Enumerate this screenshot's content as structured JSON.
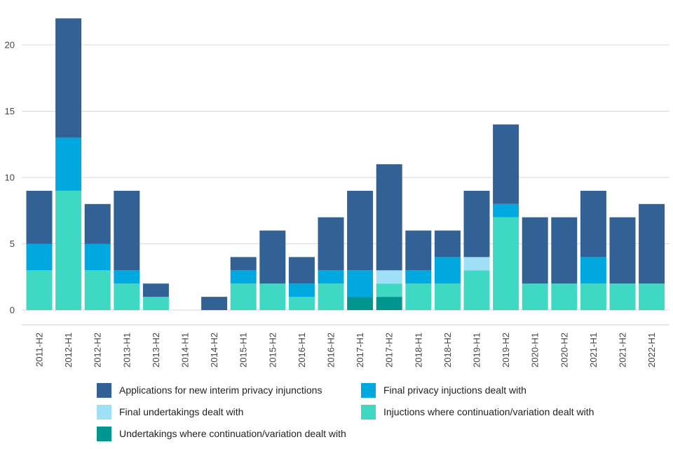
{
  "chart_data": {
    "type": "bar",
    "stacked": true,
    "title": "",
    "xlabel": "",
    "ylabel": "",
    "ylim": [
      0,
      22
    ],
    "yticks": [
      0,
      5,
      10,
      15,
      20
    ],
    "grid": true,
    "legend_position": "bottom",
    "categories": [
      "2011-H2",
      "2012-H1",
      "2012-H2",
      "2013-H1",
      "2013-H2",
      "2014-H1",
      "2014-H2",
      "2015-H1",
      "2015-H2",
      "2016-H1",
      "2016-H2",
      "2017-H1",
      "2017-H2",
      "2018-H1",
      "2018-H2",
      "2019-H1",
      "2019-H2",
      "2020-H1",
      "2020-H2",
      "2021-H1",
      "2021-H2",
      "2022-H1"
    ],
    "series": [
      {
        "name": "Undertakings where continuation/variation dealt with",
        "color": "#00968f",
        "values": [
          0,
          0,
          0,
          0,
          0,
          0,
          0,
          0,
          0,
          0,
          0,
          1,
          1,
          0,
          0,
          0,
          0,
          0,
          0,
          0,
          0,
          0
        ]
      },
      {
        "name": "Injuctions where continuation/variation dealt with",
        "color": "#3ed8c3",
        "values": [
          3,
          9,
          3,
          2,
          1,
          0,
          0,
          2,
          2,
          1,
          2,
          0,
          1,
          2,
          2,
          3,
          7,
          2,
          2,
          2,
          2,
          2
        ]
      },
      {
        "name": "Final undertakings dealt with",
        "color": "#a0e0f6",
        "values": [
          0,
          0,
          0,
          0,
          0,
          0,
          0,
          0,
          0,
          0,
          0,
          0,
          1,
          0,
          0,
          1,
          0,
          0,
          0,
          0,
          0,
          0
        ]
      },
      {
        "name": "Final privacy injuctions dealt with",
        "color": "#00a8e0",
        "values": [
          2,
          4,
          2,
          1,
          0,
          0,
          0,
          1,
          0,
          1,
          1,
          2,
          0,
          1,
          2,
          0,
          1,
          0,
          0,
          2,
          0,
          0
        ]
      },
      {
        "name": "Applications for new interim privacy injunctions",
        "color": "#326295",
        "values": [
          4,
          9,
          3,
          6,
          1,
          0,
          1,
          1,
          4,
          2,
          4,
          6,
          8,
          3,
          2,
          5,
          6,
          5,
          5,
          5,
          5,
          6
        ]
      }
    ],
    "legend": [
      {
        "name": "Applications for new interim privacy injunctions",
        "color": "#326295"
      },
      {
        "name": "Final privacy injuctions dealt with",
        "color": "#00a8e0"
      },
      {
        "name": "Final undertakings dealt with",
        "color": "#a0e0f6"
      },
      {
        "name": "Injuctions where continuation/variation dealt with",
        "color": "#3ed8c3"
      },
      {
        "name": "Undertakings where continuation/variation dealt with",
        "color": "#00968f"
      }
    ]
  }
}
